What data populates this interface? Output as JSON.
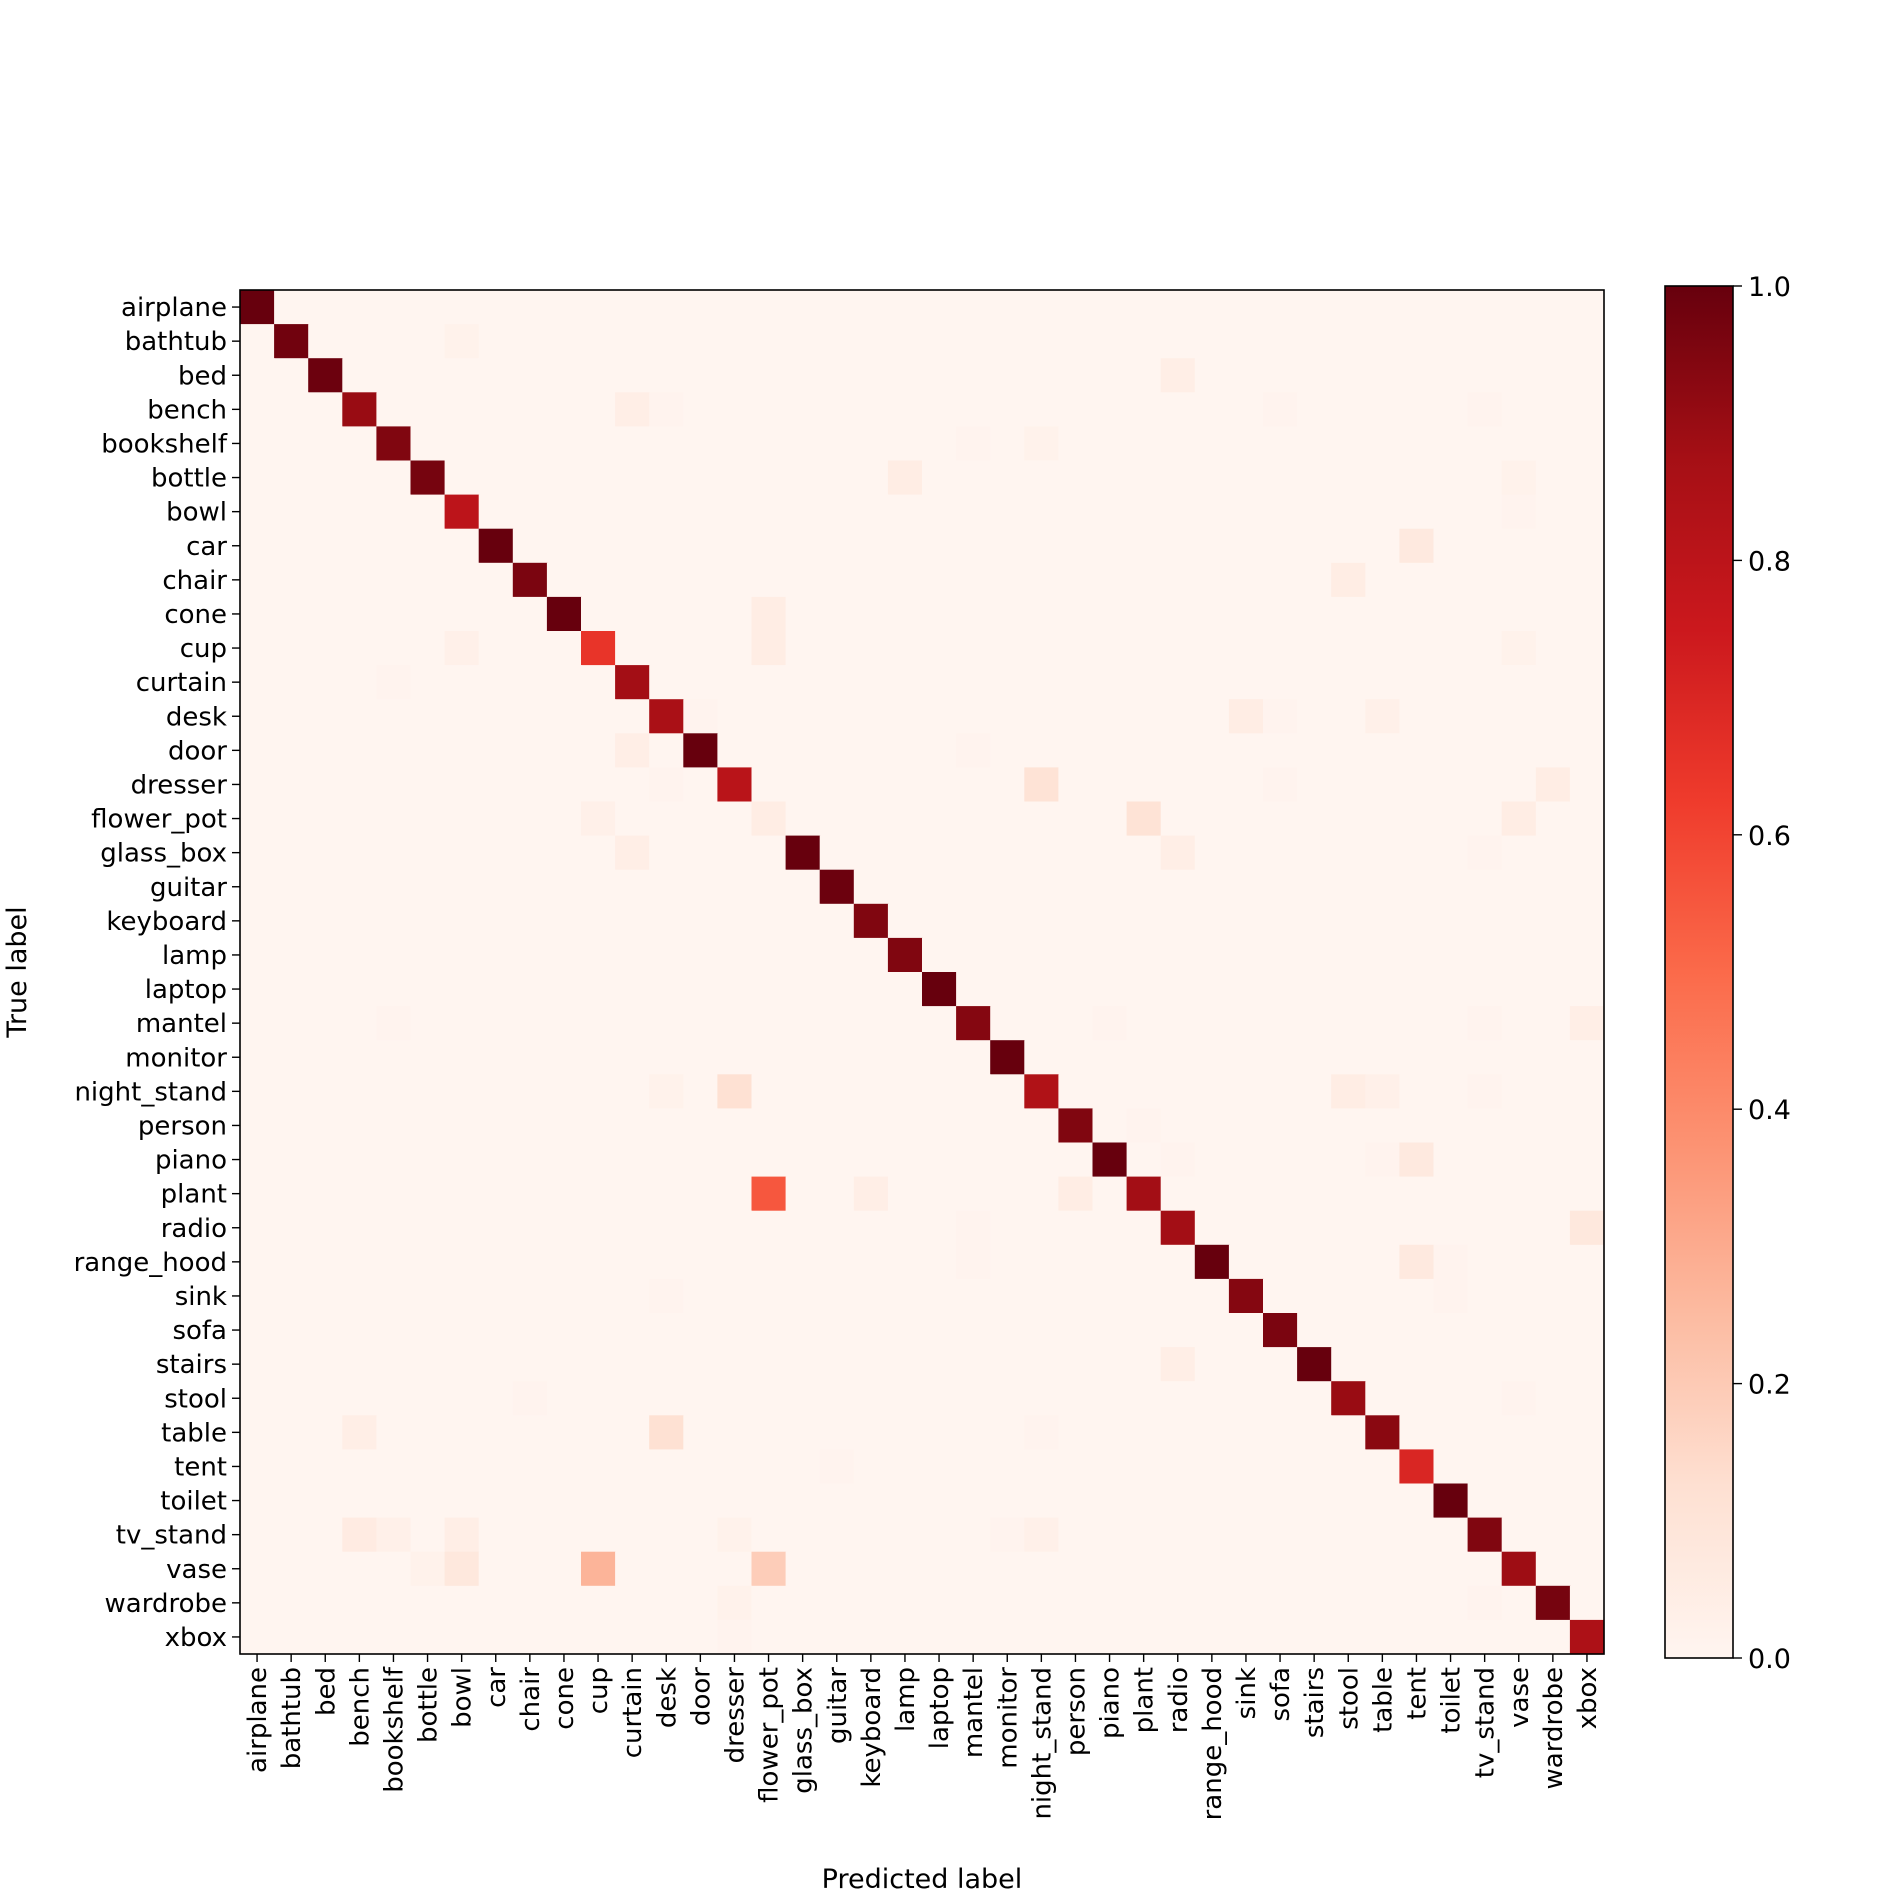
{
  "chart_data": {
    "type": "heatmap",
    "title": "",
    "xlabel": "Predicted label",
    "ylabel": "True label",
    "classes": [
      "airplane",
      "bathtub",
      "bed",
      "bench",
      "bookshelf",
      "bottle",
      "bowl",
      "car",
      "chair",
      "cone",
      "cup",
      "curtain",
      "desk",
      "door",
      "dresser",
      "flower_pot",
      "glass_box",
      "guitar",
      "keyboard",
      "lamp",
      "laptop",
      "mantel",
      "monitor",
      "night_stand",
      "person",
      "piano",
      "plant",
      "radio",
      "range_hood",
      "sink",
      "sofa",
      "stairs",
      "stool",
      "table",
      "tent",
      "toilet",
      "tv_stand",
      "vase",
      "wardrobe",
      "xbox"
    ],
    "value_range": [
      0,
      1
    ],
    "colormap": "Reds",
    "colorbar_ticks": [
      "0.0",
      "0.2",
      "0.4",
      "0.6",
      "0.8",
      "1.0"
    ],
    "diagonal": [
      1.0,
      0.98,
      0.99,
      0.9,
      0.95,
      0.97,
      0.8,
      1.0,
      0.96,
      1.0,
      0.65,
      0.88,
      0.86,
      1.0,
      0.81,
      0.05,
      1.0,
      0.99,
      0.95,
      0.95,
      1.0,
      0.94,
      1.0,
      0.84,
      0.95,
      1.0,
      0.88,
      0.88,
      1.0,
      0.94,
      0.96,
      1.0,
      0.9,
      0.93,
      0.7,
      1.0,
      0.95,
      0.89,
      0.97,
      0.85
    ],
    "off_diagonal": [
      [
        1,
        6,
        0.02
      ],
      [
        2,
        27,
        0.04
      ],
      [
        3,
        11,
        0.04
      ],
      [
        3,
        12,
        0.01
      ],
      [
        3,
        30,
        0.01
      ],
      [
        3,
        36,
        0.01
      ],
      [
        4,
        21,
        0.01
      ],
      [
        4,
        23,
        0.02
      ],
      [
        5,
        19,
        0.05
      ],
      [
        5,
        37,
        0.02
      ],
      [
        6,
        37,
        0.01
      ],
      [
        7,
        34,
        0.07
      ],
      [
        8,
        32,
        0.05
      ],
      [
        9,
        15,
        0.05
      ],
      [
        10,
        6,
        0.03
      ],
      [
        10,
        15,
        0.05
      ],
      [
        10,
        37,
        0.02
      ],
      [
        11,
        4,
        0.01
      ],
      [
        12,
        13,
        0.01
      ],
      [
        12,
        29,
        0.05
      ],
      [
        12,
        30,
        0.01
      ],
      [
        12,
        33,
        0.03
      ],
      [
        13,
        11,
        0.04
      ],
      [
        13,
        21,
        0.01
      ],
      [
        14,
        12,
        0.01
      ],
      [
        14,
        23,
        0.11
      ],
      [
        14,
        30,
        0.01
      ],
      [
        14,
        38,
        0.05
      ],
      [
        15,
        10,
        0.03
      ],
      [
        15,
        26,
        0.11
      ],
      [
        15,
        37,
        0.05
      ],
      [
        16,
        11,
        0.04
      ],
      [
        16,
        27,
        0.04
      ],
      [
        16,
        36,
        0.01
      ],
      [
        21,
        4,
        0.01
      ],
      [
        21,
        25,
        0.01
      ],
      [
        21,
        36,
        0.01
      ],
      [
        21,
        39,
        0.04
      ],
      [
        23,
        12,
        0.02
      ],
      [
        23,
        14,
        0.12
      ],
      [
        23,
        32,
        0.05
      ],
      [
        23,
        33,
        0.03
      ],
      [
        23,
        36,
        0.01
      ],
      [
        24,
        26,
        0.01
      ],
      [
        25,
        27,
        0.01
      ],
      [
        25,
        33,
        0.01
      ],
      [
        25,
        34,
        0.07
      ],
      [
        26,
        15,
        0.55
      ],
      [
        26,
        18,
        0.04
      ],
      [
        26,
        24,
        0.05
      ],
      [
        27,
        21,
        0.01
      ],
      [
        27,
        39,
        0.08
      ],
      [
        28,
        21,
        0.01
      ],
      [
        28,
        34,
        0.07
      ],
      [
        28,
        35,
        0.01
      ],
      [
        29,
        12,
        0.01
      ],
      [
        29,
        35,
        0.01
      ],
      [
        31,
        27,
        0.04
      ],
      [
        32,
        8,
        0.01
      ],
      [
        32,
        37,
        0.01
      ],
      [
        33,
        3,
        0.04
      ],
      [
        33,
        12,
        0.12
      ],
      [
        33,
        23,
        0.01
      ],
      [
        34,
        17,
        0.01
      ],
      [
        36,
        3,
        0.06
      ],
      [
        36,
        4,
        0.03
      ],
      [
        36,
        6,
        0.04
      ],
      [
        36,
        14,
        0.02
      ],
      [
        36,
        22,
        0.01
      ],
      [
        36,
        23,
        0.03
      ],
      [
        37,
        5,
        0.02
      ],
      [
        37,
        6,
        0.08
      ],
      [
        37,
        10,
        0.27
      ],
      [
        37,
        15,
        0.19
      ],
      [
        38,
        14,
        0.02
      ],
      [
        38,
        36,
        0.01
      ],
      [
        39,
        14,
        0.01
      ]
    ],
    "grid": false,
    "legend": "colorbar-right"
  }
}
